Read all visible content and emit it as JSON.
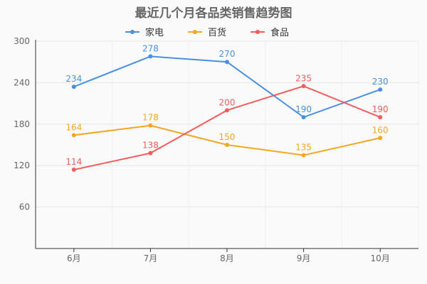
{
  "chart_data": {
    "type": "line",
    "title": "最近几个月各品类销售趋势图",
    "categories": [
      "6月",
      "7月",
      "8月",
      "9月",
      "10月"
    ],
    "series": [
      {
        "name": "家电",
        "values": [
          234,
          278,
          270,
          190,
          230
        ],
        "color": "#4a90e2"
      },
      {
        "name": "百货",
        "values": [
          164,
          178,
          150,
          135,
          160
        ],
        "color": "#f5a623"
      },
      {
        "name": "食品",
        "values": [
          114,
          138,
          200,
          235,
          190
        ],
        "color": "#f25c5c"
      }
    ],
    "ylim": [
      0,
      300
    ],
    "yticks": [
      60,
      120,
      180,
      240,
      300
    ],
    "legend_position": "top-center",
    "grid": true,
    "xlabel": "",
    "ylabel": ""
  }
}
